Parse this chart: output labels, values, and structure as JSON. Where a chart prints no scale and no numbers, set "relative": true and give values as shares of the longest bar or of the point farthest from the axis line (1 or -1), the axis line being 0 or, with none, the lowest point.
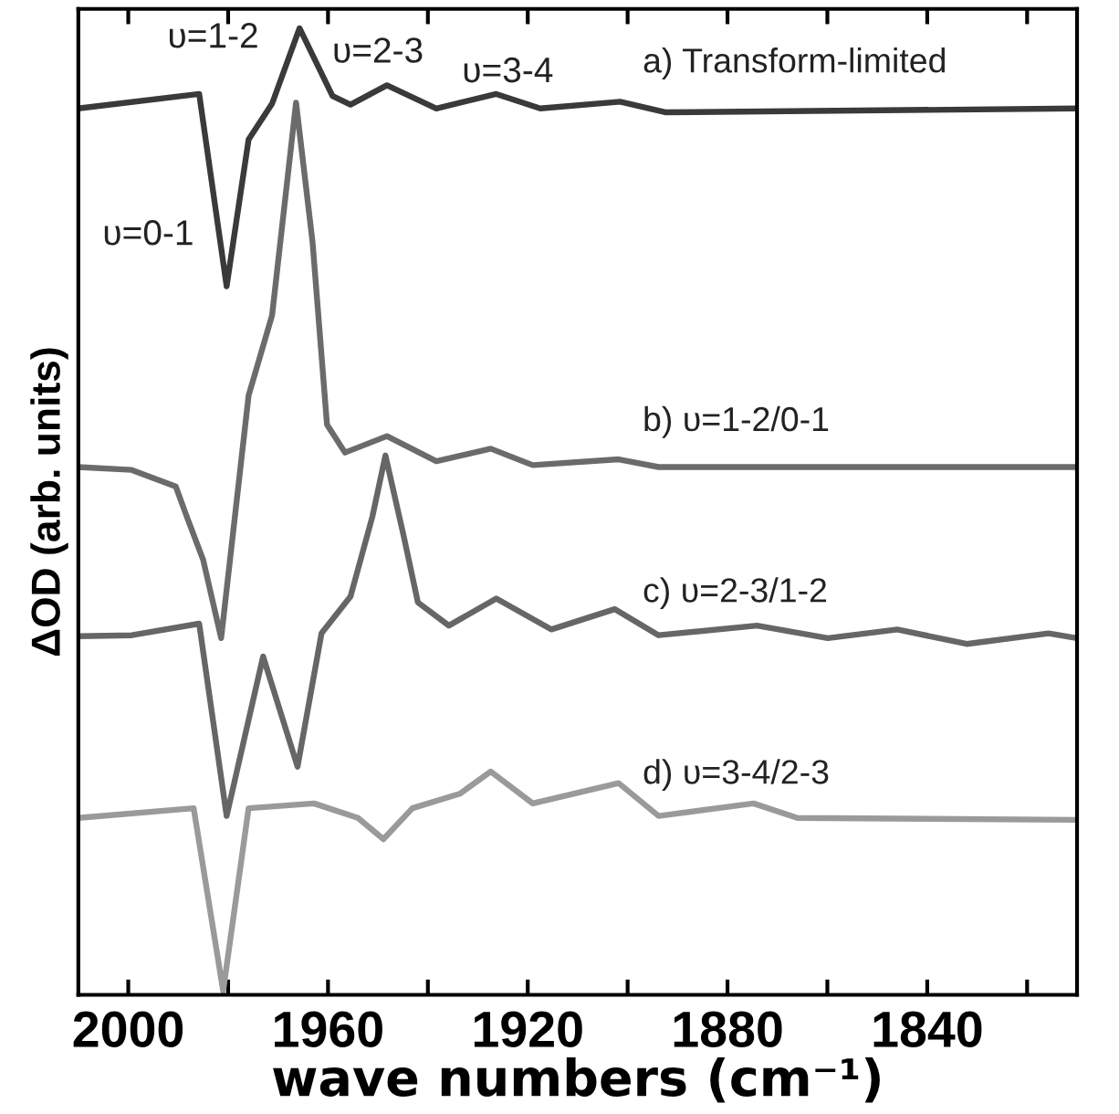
{
  "chart_data": {
    "type": "line",
    "relative": true,
    "xlabel": "wave numbers (cm⁻¹)",
    "ylabel": "ΔOD (arb. units)",
    "xlim": [
      2010,
      1810
    ],
    "xticks": [
      2000,
      {
        "value": 1980,
        "label": null
      },
      1960,
      {
        "value": 1940,
        "label": null
      },
      1920,
      {
        "value": 1900,
        "label": null
      },
      1880,
      {
        "value": 1860,
        "label": null
      },
      1840,
      {
        "value": 1820,
        "label": null
      }
    ],
    "grid": false,
    "legend": false,
    "marker": "none",
    "line_style": "solid",
    "tick_labels": "x",
    "series": [
      {
        "name": "a) Transform-limited",
        "color": "#3a3a3a",
        "x": [
          2010,
          1985.8,
          1980.3,
          1975.9,
          1971.2,
          1965.7,
          1959.1,
          1955.5,
          1948.2,
          1938.3,
          1926.3,
          1917.5,
          1901.5,
          1892.3,
          1810
        ],
        "values": [
          0.917,
          0.932,
          0.733,
          0.885,
          0.922,
          1,
          0.93,
          0.921,
          0.941,
          0.917,
          0.932,
          0.917,
          0.924,
          0.913,
          0.917
        ]
      },
      {
        "name": "b) υ=1-2/0-1",
        "color": "#6b6b6b",
        "x": [
          2010,
          1999.3,
          1990.5,
          1988.3,
          1985,
          1981.4,
          1975.9,
          1971.2,
          1966.4,
          1963.1,
          1960.2,
          1956.6,
          1948.2,
          1938.3,
          1927.4,
          1919,
          1901.8,
          1893.8,
          1810
        ],
        "values": [
          0.546,
          0.543,
          0.526,
          0.495,
          0.45,
          0.369,
          0.62,
          0.703,
          0.923,
          0.779,
          0.59,
          0.561,
          0.578,
          0.552,
          0.565,
          0.548,
          0.554,
          0.546,
          0.546
        ]
      },
      {
        "name": "c) υ=2-3/1-2",
        "color": "#666666",
        "x": [
          2010,
          1999.3,
          1985.8,
          1980.3,
          1973,
          1966.1,
          1961.3,
          1955.5,
          1951.1,
          1948.5,
          1944.9,
          1942,
          1935.8,
          1926.3,
          1915.3,
          1902.6,
          1893.8,
          1874.1,
          1859.9,
          1846,
          1832.1,
          1815.7,
          1810
        ],
        "values": [
          0.371,
          0.372,
          0.384,
          0.185,
          0.35,
          0.236,
          0.374,
          0.412,
          0.495,
          0.558,
          0.476,
          0.406,
          0.382,
          0.41,
          0.378,
          0.399,
          0.372,
          0.382,
          0.369,
          0.378,
          0.363,
          0.374,
          0.369
        ]
      },
      {
        "name": "d) υ=3-4/2-3",
        "color": "#9a9a9a",
        "x": [
          2010,
          1986.9,
          1981,
          1975.9,
          1962.8,
          1954,
          1948.9,
          1943.1,
          1933.6,
          1927.4,
          1919,
          1901.8,
          1893.8,
          1874.8,
          1866,
          1810
        ],
        "values": [
          0.183,
          0.193,
          0.004,
          0.193,
          0.198,
          0.183,
          0.161,
          0.193,
          0.208,
          0.231,
          0.198,
          0.219,
          0.185,
          0.198,
          0.183,
          0.181
        ]
      }
    ],
    "annotations": [
      "υ=0-1",
      "υ=1-2",
      "υ=2-3",
      "υ=3-4"
    ]
  }
}
